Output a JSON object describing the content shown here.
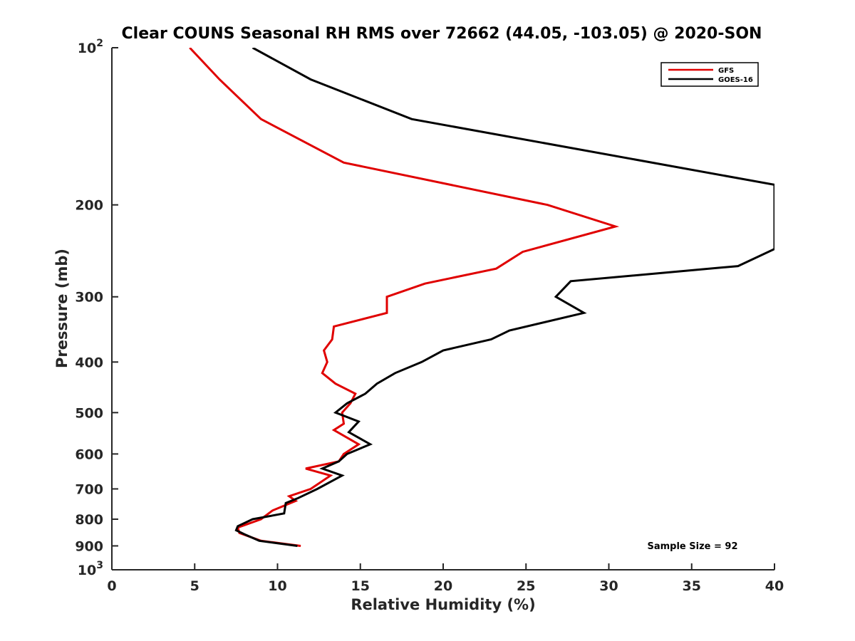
{
  "chart_data": {
    "type": "line",
    "title": "Clear COUNS Seasonal RH RMS over 72662 (44.05, -103.05) @ 2020-SON",
    "xlabel": "Relative Humidity (%)",
    "ylabel": "Pressure (mb)",
    "xlim": [
      0,
      40
    ],
    "ylim": [
      100,
      1000
    ],
    "yscale": "log",
    "y_direction": "reversed",
    "x_ticks": [
      "0",
      "5",
      "10",
      "15",
      "20",
      "25",
      "30",
      "35",
      "40"
    ],
    "y_ticks": [
      {
        "value": 100,
        "base": "10",
        "exp": "2"
      },
      {
        "value": 200,
        "base": "200",
        "exp": ""
      },
      {
        "value": 300,
        "base": "300",
        "exp": ""
      },
      {
        "value": 400,
        "base": "400",
        "exp": ""
      },
      {
        "value": 500,
        "base": "500",
        "exp": ""
      },
      {
        "value": 600,
        "base": "600",
        "exp": ""
      },
      {
        "value": 700,
        "base": "700",
        "exp": ""
      },
      {
        "value": 800,
        "base": "800",
        "exp": ""
      },
      {
        "value": 900,
        "base": "900",
        "exp": ""
      },
      {
        "value": 1000,
        "base": "10",
        "exp": "3"
      }
    ],
    "grid": false,
    "legend_position": "top-right",
    "series": [
      {
        "name": "GFS",
        "color": "#e00000",
        "points": [
          [
            4.7,
            100
          ],
          [
            6.5,
            115
          ],
          [
            9.0,
            137
          ],
          [
            14.0,
            166
          ],
          [
            26.3,
            200
          ],
          [
            30.4,
            220
          ],
          [
            24.8,
            246
          ],
          [
            23.2,
            265
          ],
          [
            18.9,
            283
          ],
          [
            16.6,
            300
          ],
          [
            16.6,
            322
          ],
          [
            13.4,
            342
          ],
          [
            13.3,
            362
          ],
          [
            12.8,
            380
          ],
          [
            13.0,
            400
          ],
          [
            12.7,
            420
          ],
          [
            13.5,
            440
          ],
          [
            14.7,
            460
          ],
          [
            14.4,
            480
          ],
          [
            13.9,
            500
          ],
          [
            14.0,
            525
          ],
          [
            13.4,
            540
          ],
          [
            14.9,
            575
          ],
          [
            14.0,
            600
          ],
          [
            13.7,
            620
          ],
          [
            11.7,
            640
          ],
          [
            13.2,
            660
          ],
          [
            12.0,
            700
          ],
          [
            10.7,
            723
          ],
          [
            11.1,
            738
          ],
          [
            9.7,
            770
          ],
          [
            9.0,
            800
          ],
          [
            7.6,
            830
          ],
          [
            7.7,
            850
          ],
          [
            9.0,
            880
          ],
          [
            11.4,
            900
          ]
        ]
      },
      {
        "name": "GOES-16",
        "color": "#000000",
        "points": [
          [
            8.5,
            100
          ],
          [
            12.0,
            115
          ],
          [
            18.1,
            137
          ],
          [
            40.0,
            183
          ],
          [
            40.0,
            243
          ],
          [
            37.8,
            262
          ],
          [
            27.7,
            280
          ],
          [
            26.8,
            300
          ],
          [
            28.5,
            322
          ],
          [
            24.0,
            348
          ],
          [
            22.9,
            362
          ],
          [
            20.0,
            380
          ],
          [
            18.7,
            400
          ],
          [
            17.1,
            420
          ],
          [
            16.0,
            440
          ],
          [
            15.3,
            460
          ],
          [
            14.2,
            480
          ],
          [
            13.5,
            500
          ],
          [
            14.9,
            520
          ],
          [
            14.3,
            545
          ],
          [
            15.6,
            575
          ],
          [
            14.2,
            600
          ],
          [
            13.7,
            620
          ],
          [
            12.7,
            640
          ],
          [
            13.9,
            660
          ],
          [
            12.4,
            700
          ],
          [
            11.2,
            730
          ],
          [
            10.5,
            745
          ],
          [
            10.4,
            780
          ],
          [
            8.5,
            800
          ],
          [
            7.6,
            825
          ],
          [
            7.5,
            840
          ],
          [
            8.0,
            855
          ],
          [
            8.9,
            880
          ],
          [
            11.2,
            900
          ]
        ]
      }
    ],
    "annotations": [
      "Sample Size = 92"
    ]
  }
}
